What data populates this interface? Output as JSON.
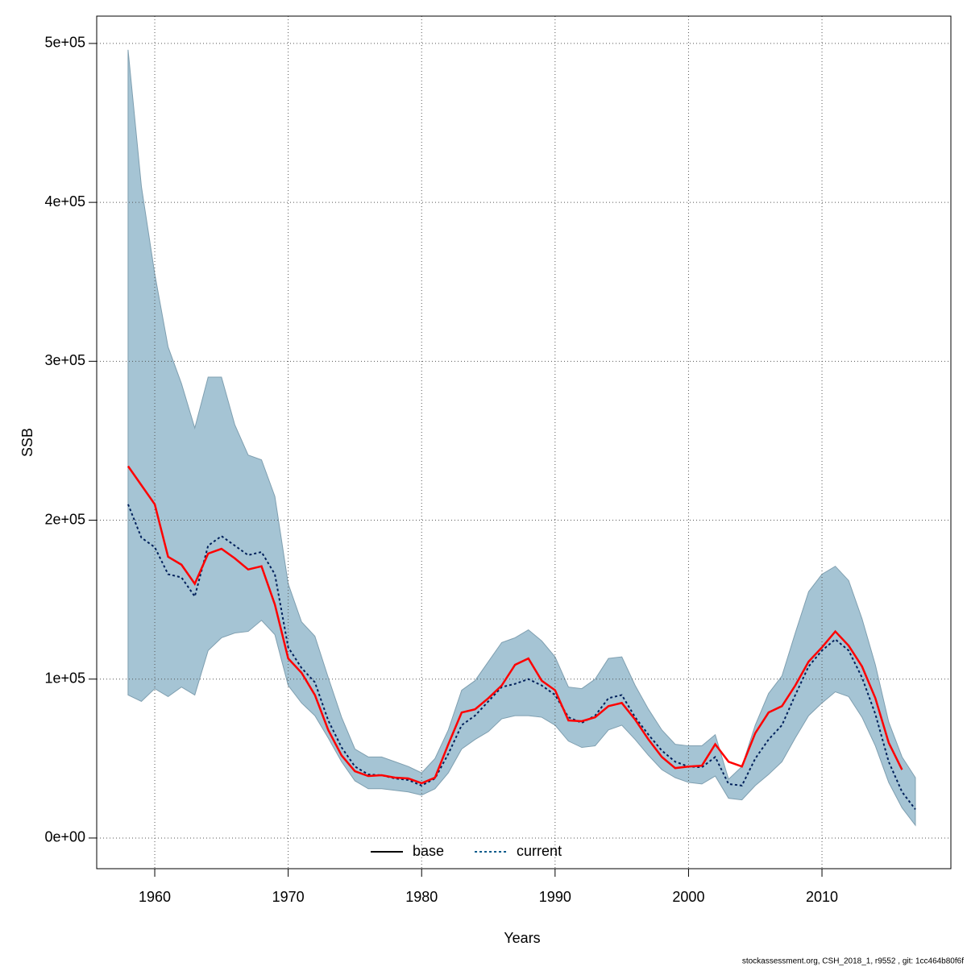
{
  "chart_data": {
    "type": "line",
    "xlabel": "Years",
    "ylabel": "SSB",
    "footer": "stockassessment.org, CSH_2018_1, r9552 , git: 1cc464b80f6f",
    "x": [
      1958,
      1959,
      1960,
      1961,
      1962,
      1963,
      1964,
      1965,
      1966,
      1967,
      1968,
      1969,
      1970,
      1971,
      1972,
      1973,
      1974,
      1975,
      1976,
      1977,
      1978,
      1979,
      1980,
      1981,
      1982,
      1983,
      1984,
      1985,
      1986,
      1987,
      1988,
      1989,
      1990,
      1991,
      1992,
      1993,
      1994,
      1995,
      1996,
      1997,
      1998,
      1999,
      2000,
      2001,
      2002,
      2003,
      2004,
      2005,
      2006,
      2007,
      2008,
      2009,
      2010,
      2011,
      2012,
      2013,
      2014,
      2015,
      2016,
      2017
    ],
    "band": {
      "color": "#a5c4d4",
      "upper": [
        496000,
        410000,
        355000,
        309000,
        286000,
        258000,
        290000,
        290000,
        260000,
        241000,
        238000,
        215000,
        160000,
        136000,
        127000,
        101000,
        76000,
        56000,
        51000,
        51000,
        48000,
        45000,
        41000,
        50000,
        68000,
        93000,
        99000,
        111000,
        123000,
        126000,
        131000,
        124000,
        114000,
        95000,
        94000,
        100000,
        113000,
        114000,
        96000,
        81000,
        68000,
        59000,
        58000,
        58000,
        65000,
        37000,
        45000,
        71000,
        91000,
        102000,
        129000,
        155000,
        166000,
        171000,
        162000,
        138000,
        109000,
        73000,
        51000,
        38000
      ],
      "lower": [
        90000,
        86000,
        94000,
        89000,
        95000,
        90000,
        118000,
        126000,
        129000,
        130000,
        137000,
        128000,
        96000,
        85000,
        77000,
        63000,
        48000,
        36000,
        31000,
        31000,
        30000,
        29000,
        27000,
        31000,
        41000,
        56000,
        62000,
        67000,
        75000,
        77000,
        77000,
        76000,
        71000,
        61000,
        57000,
        58000,
        68000,
        71000,
        62000,
        52000,
        43000,
        38000,
        35000,
        34000,
        39000,
        25000,
        24000,
        33000,
        40000,
        48000,
        63000,
        77000,
        85000,
        92000,
        89000,
        76000,
        58000,
        35000,
        19000,
        8000
      ]
    },
    "series": [
      {
        "name": "base",
        "color": "#ff0000",
        "legend_color": "#000000",
        "dash": false,
        "values": [
          234000,
          222000,
          210000,
          177000,
          172000,
          160000,
          179000,
          182000,
          176000,
          169000,
          171000,
          147000,
          113000,
          104000,
          90000,
          68000,
          52000,
          42000,
          39000,
          39500,
          38000,
          37500,
          34500,
          38000,
          59000,
          79000,
          81000,
          88000,
          96000,
          109000,
          113000,
          99000,
          93000,
          74000,
          73500,
          76000,
          83000,
          85000,
          74500,
          62000,
          51000,
          44000,
          45000,
          45500,
          59000,
          48000,
          45000,
          66000,
          79000,
          83000,
          96000,
          111000,
          120000,
          130000,
          121000,
          108000,
          88000,
          60000,
          43000,
          null
        ]
      },
      {
        "name": "current",
        "color": "#00205b",
        "legend_color": "#0a5a8a",
        "dash": true,
        "values": [
          210000,
          189000,
          183000,
          166000,
          164000,
          152000,
          184000,
          190000,
          184000,
          178000,
          180000,
          166000,
          120000,
          107000,
          98000,
          74000,
          57000,
          45000,
          40000,
          39500,
          37500,
          36500,
          33000,
          37500,
          53000,
          71000,
          77000,
          86000,
          95000,
          97000,
          100000,
          96000,
          90000,
          76000,
          72500,
          77000,
          88000,
          90000,
          76000,
          65000,
          55000,
          48000,
          45000,
          44500,
          51000,
          34000,
          33000,
          50000,
          62000,
          71000,
          90000,
          108000,
          118000,
          125000,
          118000,
          101000,
          78000,
          48000,
          29000,
          18000
        ]
      }
    ],
    "xlim": [
      1955.65,
      2019.66
    ],
    "ylim": [
      -19300,
      517200
    ],
    "xticks": [
      1960,
      1970,
      1980,
      1990,
      2000,
      2010
    ],
    "yticks": [
      {
        "value": 0,
        "label": "0e+00"
      },
      {
        "value": 100000,
        "label": "1e+05"
      },
      {
        "value": 200000,
        "label": "2e+05"
      },
      {
        "value": 300000,
        "label": "3e+05"
      },
      {
        "value": 400000,
        "label": "4e+05"
      },
      {
        "value": 500000,
        "label": "5e+05"
      }
    ],
    "grid": true,
    "legend": "bottom"
  }
}
